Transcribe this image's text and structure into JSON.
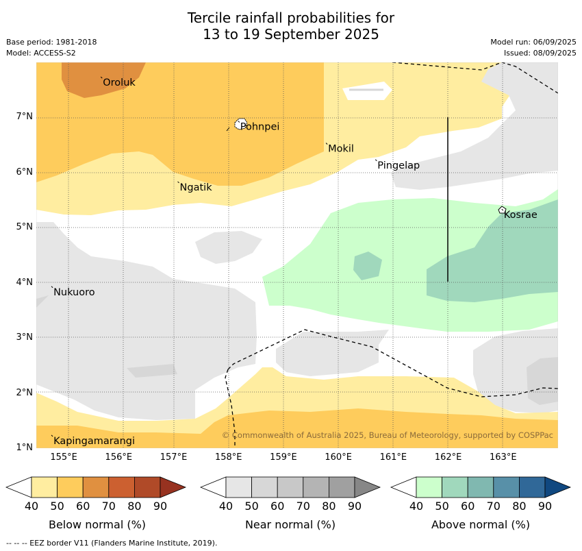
{
  "title": {
    "line1": "Tercile rainfall probabilities for",
    "line2": "13 to 19 September 2025"
  },
  "meta": {
    "base_period": "Base period: 1981-2018",
    "model": "Model: ACCESS-S2",
    "model_run": "Model run: 06/09/2025",
    "issued": "Issued: 08/09/2025"
  },
  "map": {
    "lon_range": [
      154.5,
      164.0
    ],
    "lat_range": [
      1.0,
      8.0
    ],
    "lon_ticks": [
      "155°E",
      "156°E",
      "157°E",
      "158°E",
      "159°E",
      "160°E",
      "161°E",
      "162°E",
      "163°E"
    ],
    "lat_ticks": [
      "1°N",
      "2°N",
      "3°N",
      "4°N",
      "5°N",
      "6°N",
      "7°N"
    ],
    "places": [
      {
        "name": "Oroluk",
        "lon": 155.7,
        "lat": 7.7
      },
      {
        "name": "Pohnpei",
        "lon": 158.2,
        "lat": 6.9
      },
      {
        "name": "Mokil",
        "lon": 159.8,
        "lat": 6.5
      },
      {
        "name": "Pingelap",
        "lon": 160.7,
        "lat": 6.2
      },
      {
        "name": "Ngatik",
        "lon": 157.1,
        "lat": 5.8
      },
      {
        "name": "Kosrae",
        "lon": 163.0,
        "lat": 5.3
      },
      {
        "name": "Nukuoro",
        "lon": 154.8,
        "lat": 3.9
      },
      {
        "name": "Kapingamarangi",
        "lon": 154.8,
        "lat": 1.2
      }
    ],
    "copyright": "© Commonwealth of Australia 2025, Bureau of Meteorology, supported by COSPPac"
  },
  "colorbars": [
    {
      "label": "Below normal (%)",
      "ticks": [
        "40",
        "50",
        "60",
        "70",
        "80",
        "90"
      ],
      "colors": [
        "#ffeda0",
        "#fecc5c",
        "#e09040",
        "#cc6030",
        "#b04a28",
        "#973220"
      ]
    },
    {
      "label": "Near normal (%)",
      "ticks": [
        "40",
        "50",
        "60",
        "70",
        "80",
        "90"
      ],
      "colors": [
        "#e6e6e6",
        "#d7d7d7",
        "#c8c8c8",
        "#b4b4b4",
        "#a0a0a0",
        "#878787"
      ]
    },
    {
      "label": "Above normal (%)",
      "ticks": [
        "40",
        "50",
        "60",
        "70",
        "80",
        "90"
      ],
      "colors": [
        "#ccffcc",
        "#a0d8bc",
        "#80b8b0",
        "#5890a8",
        "#306898",
        "#104880"
      ]
    }
  ],
  "colors": {
    "below_40": "#ffeda0",
    "below_50": "#fecc5c",
    "below_60": "#e09040",
    "near_40": "#e6e6e6",
    "near_50": "#d7d7d7",
    "above_40": "#ccffcc",
    "above_50": "#a0d8bc"
  },
  "footnote": "--  --  -- EEZ border V11 (Flanders Marine Institute, 2019)."
}
